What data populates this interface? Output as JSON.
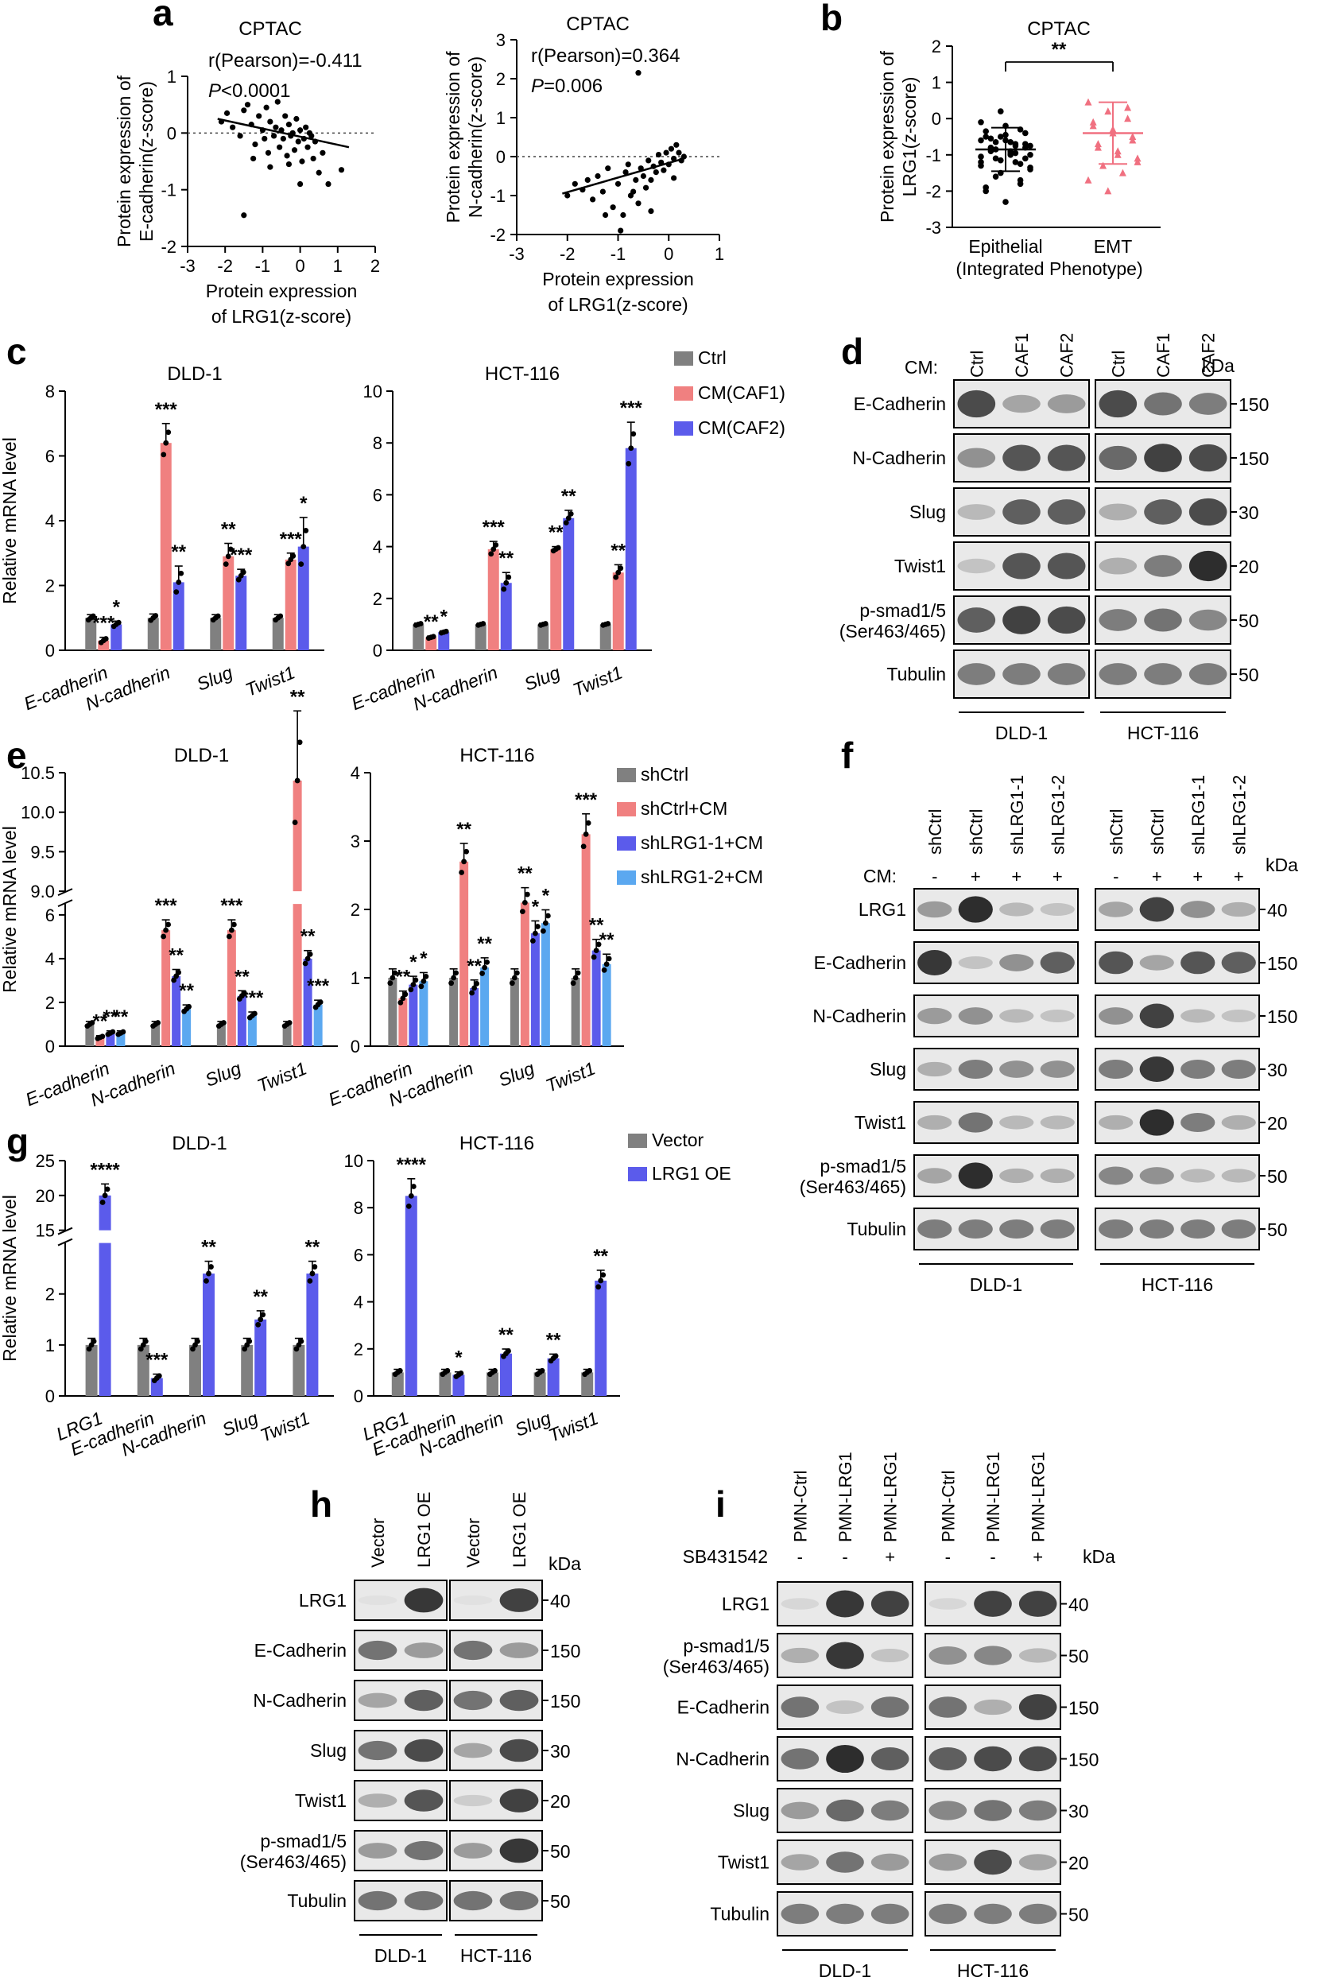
{
  "colors": {
    "gray": "#808080",
    "pink": "#F08080",
    "blue": "#5B5BEB",
    "lightblue": "#5BA8F0",
    "scatter_pink": "#F07080"
  },
  "panel_labels": {
    "a": "a",
    "b": "b",
    "c": "c",
    "d": "d",
    "e": "e",
    "f": "f",
    "g": "g",
    "h": "h",
    "i": "i"
  },
  "chart_data": [
    {
      "id": "a1",
      "type": "scatter",
      "title": "CPTAC",
      "stat1": "r(Pearson)=-0.411",
      "stat2_prefix": "P",
      "stat2_suffix": "<0.0001",
      "xlabel": "Protein expression of LRG1(z-score)",
      "xlabel1": "Protein expression",
      "xlabel2": "of LRG1(z-score)",
      "ylabel": "Protein expression of E-cadherin(z-score)",
      "ylabel1": "Protein expression of",
      "ylabel2": "E-cadherin(z-score)",
      "xlim": [
        -3,
        2
      ],
      "ylim": [
        -2,
        1
      ],
      "xticks": [
        "-3",
        "-2",
        "-1",
        "0",
        "1",
        "2"
      ],
      "yticks": [
        "1",
        "0",
        "-1",
        "-2"
      ],
      "fit": {
        "x": [
          -2.2,
          1.3
        ],
        "y": [
          0.25,
          -0.25
        ]
      },
      "points": [
        [
          -2.1,
          0.2
        ],
        [
          -1.95,
          0.35
        ],
        [
          -1.8,
          0.1
        ],
        [
          -1.6,
          -0.05
        ],
        [
          -1.5,
          0.4
        ],
        [
          -1.4,
          0.5
        ],
        [
          -1.3,
          0.15
        ],
        [
          -1.2,
          -0.2
        ],
        [
          -1.1,
          0.3
        ],
        [
          -1.0,
          0.05
        ],
        [
          -0.95,
          -0.1
        ],
        [
          -0.9,
          0.45
        ],
        [
          -0.85,
          -0.35
        ],
        [
          -0.8,
          0.2
        ],
        [
          -0.7,
          -0.05
        ],
        [
          -0.65,
          0.1
        ],
        [
          -0.6,
          0.55
        ],
        [
          -0.55,
          -0.25
        ],
        [
          -0.5,
          0.05
        ],
        [
          -0.45,
          -0.1
        ],
        [
          -0.4,
          0.3
        ],
        [
          -0.35,
          -0.4
        ],
        [
          -0.3,
          0.15
        ],
        [
          -0.25,
          -0.05
        ],
        [
          -0.2,
          0.0
        ],
        [
          -0.15,
          -0.3
        ],
        [
          -0.1,
          0.25
        ],
        [
          -0.05,
          -0.15
        ],
        [
          0.0,
          0.05
        ],
        [
          0.05,
          -0.5
        ],
        [
          0.1,
          -0.1
        ],
        [
          0.15,
          0.1
        ],
        [
          0.2,
          -0.25
        ],
        [
          0.25,
          0.0
        ],
        [
          0.3,
          -0.05
        ],
        [
          0.35,
          -0.45
        ],
        [
          0.4,
          -0.15
        ],
        [
          0.5,
          -0.7
        ],
        [
          0.6,
          -0.35
        ],
        [
          0.75,
          -0.9
        ],
        [
          -1.5,
          -1.45
        ],
        [
          1.1,
          -0.65
        ],
        [
          0.0,
          -0.9
        ],
        [
          -0.3,
          -0.55
        ],
        [
          -0.8,
          -0.6
        ],
        [
          -1.25,
          -0.45
        ]
      ]
    },
    {
      "id": "a2",
      "type": "scatter",
      "title": "CPTAC",
      "stat1": "r(Pearson)=0.364",
      "stat2_prefix": "P",
      "stat2_suffix": "=0.006",
      "xlabel": "Protein expression of LRG1(z-score)",
      "xlabel1": "Protein expression",
      "xlabel2": "of LRG1(z-score)",
      "ylabel": "Protein expression of N-cadherin(z-score)",
      "ylabel1": "Protein expression of",
      "ylabel2": "N-cadherin(z-score)",
      "xlim": [
        -3,
        1
      ],
      "ylim": [
        -2,
        3
      ],
      "xticks": [
        "-3",
        "-2",
        "-1",
        "0",
        "1"
      ],
      "yticks": [
        "3",
        "2",
        "1",
        "0",
        "-1",
        "-2"
      ],
      "fit": {
        "x": [
          -2.1,
          0.3
        ],
        "y": [
          -0.95,
          -0.05
        ]
      },
      "points": [
        [
          -2.0,
          -1.0
        ],
        [
          -1.85,
          -0.7
        ],
        [
          -1.7,
          -0.85
        ],
        [
          -1.6,
          -0.6
        ],
        [
          -1.5,
          -1.1
        ],
        [
          -1.4,
          -0.5
        ],
        [
          -1.3,
          -0.9
        ],
        [
          -1.2,
          -0.3
        ],
        [
          -1.1,
          -1.3
        ],
        [
          -1.0,
          -0.7
        ],
        [
          -0.95,
          -1.9
        ],
        [
          -0.9,
          -1.5
        ],
        [
          -0.85,
          -0.4
        ],
        [
          -0.8,
          -0.2
        ],
        [
          -0.7,
          -0.9
        ],
        [
          -0.65,
          -0.6
        ],
        [
          -0.6,
          -1.2
        ],
        [
          -0.55,
          -0.3
        ],
        [
          -0.5,
          -0.5
        ],
        [
          -0.45,
          -0.8
        ],
        [
          -0.4,
          -0.1
        ],
        [
          -0.35,
          -0.6
        ],
        [
          -0.3,
          -0.25
        ],
        [
          -0.25,
          -0.4
        ],
        [
          -0.2,
          0.05
        ],
        [
          -0.15,
          -0.15
        ],
        [
          -0.1,
          -0.35
        ],
        [
          -0.05,
          0.1
        ],
        [
          0.0,
          -0.2
        ],
        [
          0.05,
          0.2
        ],
        [
          0.1,
          -0.05
        ],
        [
          0.15,
          0.3
        ],
        [
          0.2,
          0.1
        ],
        [
          0.25,
          -0.1
        ],
        [
          0.3,
          0.0
        ],
        [
          -0.6,
          2.15
        ],
        [
          -0.35,
          -1.4
        ],
        [
          -0.75,
          -1.0
        ],
        [
          -1.25,
          -1.5
        ],
        [
          0.1,
          -0.55
        ]
      ]
    },
    {
      "id": "b",
      "type": "scatter",
      "title": "CPTAC",
      "ylabel": "Protein expression of LRG1(z-score)",
      "ylabel1": "Protein expression of",
      "ylabel2": "LRG1(z-score)",
      "ylim": [
        -3,
        2
      ],
      "yticks": [
        "2",
        "1",
        "0",
        "-1",
        "-2",
        "-3"
      ],
      "categories": [
        "Epithelial",
        "EMT"
      ],
      "xnote": "(Integrated Phenotype)",
      "significance": "**",
      "groups": [
        {
          "name": "Epithelial",
          "mean": -0.85,
          "sd": 0.6,
          "points": [
            -0.1,
            0.2,
            -0.3,
            -0.5,
            -0.6,
            -0.7,
            -0.8,
            -0.9,
            -1.0,
            -1.1,
            -1.2,
            -1.3,
            -1.5,
            -1.7,
            -2.0,
            -2.3,
            -0.4,
            -0.55,
            -0.65,
            -0.75,
            -0.85,
            -0.95,
            -1.05,
            -1.15,
            -1.25,
            -0.35,
            -0.45,
            -0.8,
            -0.9,
            -1.0,
            -1.4,
            -1.6,
            -0.7,
            -0.6,
            -0.5,
            -1.8,
            -1.9,
            -0.2,
            -1.1,
            -0.85,
            -0.95,
            -1.35,
            -0.65,
            -0.75,
            -1.2
          ]
        },
        {
          "name": "EMT",
          "mean": -0.4,
          "sd": 0.85,
          "points": [
            0.45,
            0.2,
            0.0,
            -0.1,
            -0.3,
            -0.5,
            -0.7,
            -0.9,
            -1.1,
            -1.3,
            -1.5,
            -1.7,
            -2.0,
            0.3,
            -0.2,
            -0.4,
            -0.6,
            -0.8,
            -1.0,
            -1.2
          ]
        }
      ]
    },
    {
      "id": "c1",
      "type": "bar",
      "title": "DLD-1",
      "ylabel": "Relative mRNA level",
      "ylim": [
        0,
        8
      ],
      "yticks": [
        "0",
        "2",
        "4",
        "6",
        "8"
      ],
      "categories": [
        "E-cadherin",
        "N-cadherin",
        "Slug",
        "Twist1"
      ],
      "series": [
        {
          "name": "Ctrl",
          "values": [
            1,
            1,
            1,
            1
          ],
          "err": [
            0.1,
            0.12,
            0.1,
            0.1
          ]
        },
        {
          "name": "CM(CAF1)",
          "values": [
            0.3,
            6.4,
            2.9,
            2.8
          ],
          "err": [
            0.1,
            0.6,
            0.4,
            0.2
          ]
        },
        {
          "name": "CM(CAF2)",
          "values": [
            0.8,
            2.1,
            2.3,
            3.2
          ],
          "err": [
            0.1,
            0.5,
            0.2,
            0.9
          ]
        }
      ],
      "sig": [
        [
          "",
          "***",
          "*"
        ],
        [
          "",
          "***",
          "**"
        ],
        [
          "",
          "**",
          "***"
        ],
        [
          "",
          "***",
          "*"
        ]
      ]
    },
    {
      "id": "c2",
      "type": "bar",
      "title": "HCT-116",
      "ylim": [
        0,
        10
      ],
      "yticks": [
        "0",
        "2",
        "4",
        "6",
        "8",
        "10"
      ],
      "categories": [
        "E-cadherin",
        "N-cadherin",
        "Slug",
        "Twist1"
      ],
      "series": [
        {
          "name": "Ctrl",
          "values": [
            1,
            1,
            1,
            1
          ],
          "err": [
            0.05,
            0.05,
            0.05,
            0.05
          ]
        },
        {
          "name": "CM(CAF1)",
          "values": [
            0.5,
            3.9,
            3.9,
            3.0
          ],
          "err": [
            0.05,
            0.3,
            0.1,
            0.3
          ]
        },
        {
          "name": "CM(CAF2)",
          "values": [
            0.7,
            2.6,
            5.1,
            7.8
          ],
          "err": [
            0.05,
            0.4,
            0.3,
            1.0
          ]
        }
      ],
      "sig": [
        [
          "",
          "**",
          "*"
        ],
        [
          "",
          "***",
          "**"
        ],
        [
          "",
          "**",
          "**"
        ],
        [
          "",
          "**",
          "***"
        ]
      ],
      "legend": [
        "Ctrl",
        "CM(CAF1)",
        "CM(CAF2)"
      ]
    },
    {
      "id": "e1",
      "type": "bar",
      "title": "DLD-1",
      "ylabel": "Relative mRNA level",
      "ylim": [
        0,
        10.5
      ],
      "broken_axis": [
        6.5,
        9.0
      ],
      "yticks_low": [
        "0",
        "2",
        "4",
        "6"
      ],
      "yticks_high": [
        "9.0",
        "9.5",
        "10.0",
        "10.5"
      ],
      "categories": [
        "E-cadherin",
        "N-cadherin",
        "Slug",
        "Twist1"
      ],
      "series": [
        {
          "name": "shCtrl",
          "values": [
            1,
            1,
            1,
            1
          ]
        },
        {
          "name": "shCtrl+CM",
          "values": [
            0.4,
            5.3,
            5.3,
            10.4
          ]
        },
        {
          "name": "shLRG1-1+CM",
          "values": [
            0.6,
            3.2,
            2.3,
            4.0
          ]
        },
        {
          "name": "shLRG1-2+CM",
          "values": [
            0.6,
            1.7,
            1.4,
            1.9
          ]
        }
      ],
      "sig": [
        [
          "",
          "**",
          "**",
          "**"
        ],
        [
          "",
          "***",
          "**",
          "**"
        ],
        [
          "",
          "***",
          "**",
          "***"
        ],
        [
          "",
          "**",
          "**",
          "***"
        ]
      ]
    },
    {
      "id": "e2",
      "type": "bar",
      "title": "HCT-116",
      "ylim": [
        0,
        4
      ],
      "yticks": [
        "0",
        "1",
        "2",
        "3",
        "4"
      ],
      "categories": [
        "E-cadherin",
        "N-cadherin",
        "Slug",
        "Twist1"
      ],
      "series": [
        {
          "name": "shCtrl",
          "values": [
            1,
            1,
            1,
            1
          ]
        },
        {
          "name": "shCtrl+CM",
          "values": [
            0.7,
            2.7,
            2.1,
            3.1
          ]
        },
        {
          "name": "shLRG1-1+CM",
          "values": [
            0.9,
            0.85,
            1.65,
            1.4
          ]
        },
        {
          "name": "shLRG1-2+CM",
          "values": [
            0.95,
            1.15,
            1.8,
            1.2
          ]
        }
      ],
      "sig": [
        [
          "",
          "**",
          "*",
          "*"
        ],
        [
          "",
          "**",
          "**",
          "**"
        ],
        [
          "",
          "**",
          "*",
          "*"
        ],
        [
          "",
          "***",
          "**",
          "**"
        ]
      ],
      "legend": [
        "shCtrl",
        "shCtrl+CM",
        "shLRG1-1+CM",
        "shLRG1-2+CM"
      ]
    },
    {
      "id": "g1",
      "type": "bar",
      "title": "DLD-1",
      "ylabel": "Relative mRNA level",
      "ylim": [
        0,
        25
      ],
      "broken_axis": [
        3,
        15
      ],
      "yticks_low": [
        "0",
        "1",
        "2"
      ],
      "yticks_high": [
        "15",
        "20",
        "25"
      ],
      "categories": [
        "LRG1",
        "E-cadherin",
        "N-cadherin",
        "Slug",
        "Twist1"
      ],
      "series": [
        {
          "name": "Vector",
          "values": [
            1,
            1,
            1,
            1,
            1
          ]
        },
        {
          "name": "LRG1 OE",
          "values": [
            20,
            0.35,
            2.4,
            1.5,
            2.4
          ]
        }
      ],
      "sig": [
        [
          "",
          "****"
        ],
        [
          "",
          "***"
        ],
        [
          "",
          "**"
        ],
        [
          "",
          "**"
        ],
        [
          "",
          "**"
        ]
      ]
    },
    {
      "id": "g2",
      "type": "bar",
      "title": "HCT-116",
      "ylim": [
        0,
        10
      ],
      "yticks": [
        "0",
        "2",
        "4",
        "6",
        "8",
        "10"
      ],
      "categories": [
        "LRG1",
        "E-cadherin",
        "N-cadherin",
        "Slug",
        "Twist1"
      ],
      "series": [
        {
          "name": "Vector",
          "values": [
            1,
            1,
            1,
            1,
            1
          ]
        },
        {
          "name": "LRG1 OE",
          "values": [
            8.5,
            0.9,
            1.8,
            1.6,
            4.9
          ]
        }
      ],
      "sig": [
        [
          "",
          "****"
        ],
        [
          "",
          "*"
        ],
        [
          "",
          "**"
        ],
        [
          "",
          "**"
        ],
        [
          "",
          "**"
        ]
      ],
      "legend": [
        "Vector",
        "LRG1 OE"
      ]
    }
  ],
  "blots": {
    "d": {
      "cm": "CM:",
      "lanes": [
        "Ctrl",
        "CAF1",
        "CAF2",
        "Ctrl",
        "CAF1",
        "CAF2"
      ],
      "kda": "kDa",
      "rows": [
        {
          "name": "E-Cadherin",
          "mw": "150"
        },
        {
          "name": "N-Cadherin",
          "mw": "150"
        },
        {
          "name": "Slug",
          "mw": "30"
        },
        {
          "name": "Twist1",
          "mw": "20"
        },
        {
          "name": "p-smad1/5",
          "name2": "(Ser463/465)",
          "mw": "50"
        },
        {
          "name": "Tubulin",
          "mw": "50"
        }
      ],
      "cells": [
        "DLD-1",
        "HCT-116"
      ]
    },
    "f": {
      "cm": "CM:",
      "lanes": [
        "shCtrl",
        "shCtrl",
        "shLRG1-1",
        "shLRG1-2",
        "shCtrl",
        "shCtrl",
        "shLRG1-1",
        "shLRG1-2"
      ],
      "signs": [
        "-",
        "+",
        "+",
        "+",
        "-",
        "+",
        "+",
        "+"
      ],
      "kda": "kDa",
      "rows": [
        {
          "name": "LRG1",
          "mw": "40"
        },
        {
          "name": "E-Cadherin",
          "mw": "150"
        },
        {
          "name": "N-Cadherin",
          "mw": "150"
        },
        {
          "name": "Slug",
          "mw": "30"
        },
        {
          "name": "Twist1",
          "mw": "20"
        },
        {
          "name": "p-smad1/5",
          "name2": "(Ser463/465)",
          "mw": "50"
        },
        {
          "name": "Tubulin",
          "mw": "50"
        }
      ],
      "cells": [
        "DLD-1",
        "HCT-116"
      ]
    },
    "h": {
      "lanes": [
        "Vector",
        "LRG1 OE",
        "Vector",
        "LRG1 OE"
      ],
      "kda": "kDa",
      "rows": [
        {
          "name": "LRG1",
          "mw": "40"
        },
        {
          "name": "E-Cadherin",
          "mw": "150"
        },
        {
          "name": "N-Cadherin",
          "mw": "150"
        },
        {
          "name": "Slug",
          "mw": "30"
        },
        {
          "name": "Twist1",
          "mw": "20"
        },
        {
          "name": "p-smad1/5",
          "name2": "(Ser463/465)",
          "mw": "50"
        },
        {
          "name": "Tubulin",
          "mw": "50"
        }
      ],
      "cells": [
        "DLD-1",
        "HCT-116"
      ]
    },
    "i": {
      "treat": "SB431542",
      "lanes": [
        "PMN-Ctrl",
        "PMN-LRG1",
        "PMN-LRG1",
        "PMN-Ctrl",
        "PMN-LRG1",
        "PMN-LRG1"
      ],
      "signs": [
        "-",
        "-",
        "+",
        "-",
        "-",
        "+"
      ],
      "kda": "kDa",
      "rows": [
        {
          "name": "LRG1",
          "mw": "40"
        },
        {
          "name": "p-smad1/5",
          "name2": "(Ser463/465)",
          "mw": "50"
        },
        {
          "name": "E-Cadherin",
          "mw": "150"
        },
        {
          "name": "N-Cadherin",
          "mw": "150"
        },
        {
          "name": "Slug",
          "mw": "30"
        },
        {
          "name": "Twist1",
          "mw": "20"
        },
        {
          "name": "Tubulin",
          "mw": "50"
        }
      ],
      "cells": [
        "DLD-1",
        "HCT-116"
      ]
    }
  }
}
